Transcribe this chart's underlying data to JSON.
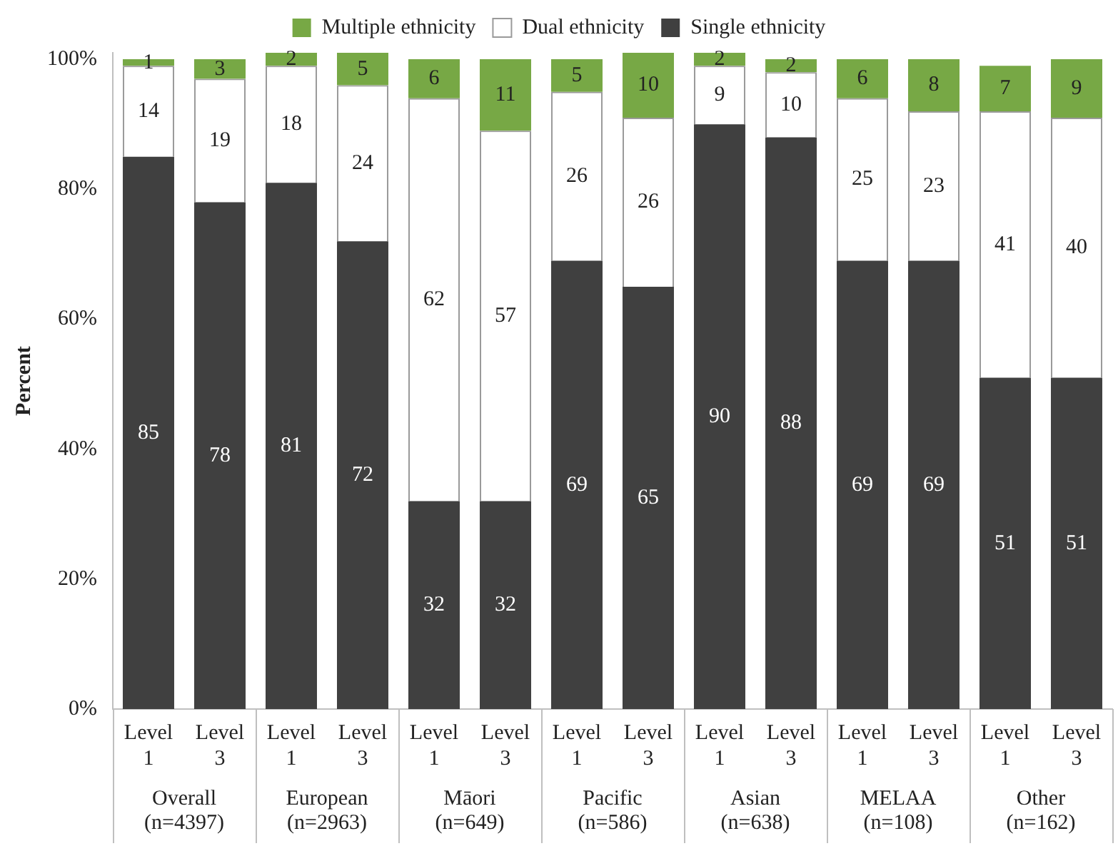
{
  "chart_data": {
    "type": "bar",
    "stacked": true,
    "ylabel": "Percent",
    "categories": [
      "Level 1",
      "Level 3",
      "Level 1",
      "Level 3",
      "Level 1",
      "Level 3",
      "Level 1",
      "Level 3",
      "Level 1",
      "Level 3",
      "Level 1",
      "Level 3",
      "Level 1",
      "Level 3"
    ],
    "series": [
      {
        "name": "Single ethnicity",
        "color": "#404040",
        "values": [
          85,
          78,
          81,
          72,
          32,
          32,
          69,
          65,
          90,
          88,
          69,
          69,
          51,
          51
        ]
      },
      {
        "name": "Dual ethnicity",
        "color": "#ffffff",
        "values": [
          14,
          19,
          18,
          24,
          62,
          57,
          26,
          26,
          9,
          10,
          25,
          23,
          41,
          40
        ]
      },
      {
        "name": "Multiple ethnicity",
        "color": "#77a845",
        "values": [
          1,
          3,
          2,
          5,
          6,
          11,
          5,
          10,
          2,
          2,
          6,
          8,
          7,
          9
        ]
      }
    ],
    "ylim": [
      0,
      101
    ],
    "yticks": [
      {
        "value": 0,
        "label": "0%"
      },
      {
        "value": 20,
        "label": "20%"
      },
      {
        "value": 40,
        "label": "40%"
      },
      {
        "value": 60,
        "label": "60%"
      },
      {
        "value": 80,
        "label": "80%"
      },
      {
        "value": 100,
        "label": "100%"
      }
    ],
    "annotations": [
      "Overall\n(n=4397)",
      "European\n(n=2963)",
      "Māori\n(n=649)",
      "Pacific\n(n=586)",
      "Asian\n(n=638)",
      "MELAA\n(n=108)",
      "Other\n(n=162)"
    ],
    "data_labels": true,
    "legend": "top",
    "grid": false
  }
}
